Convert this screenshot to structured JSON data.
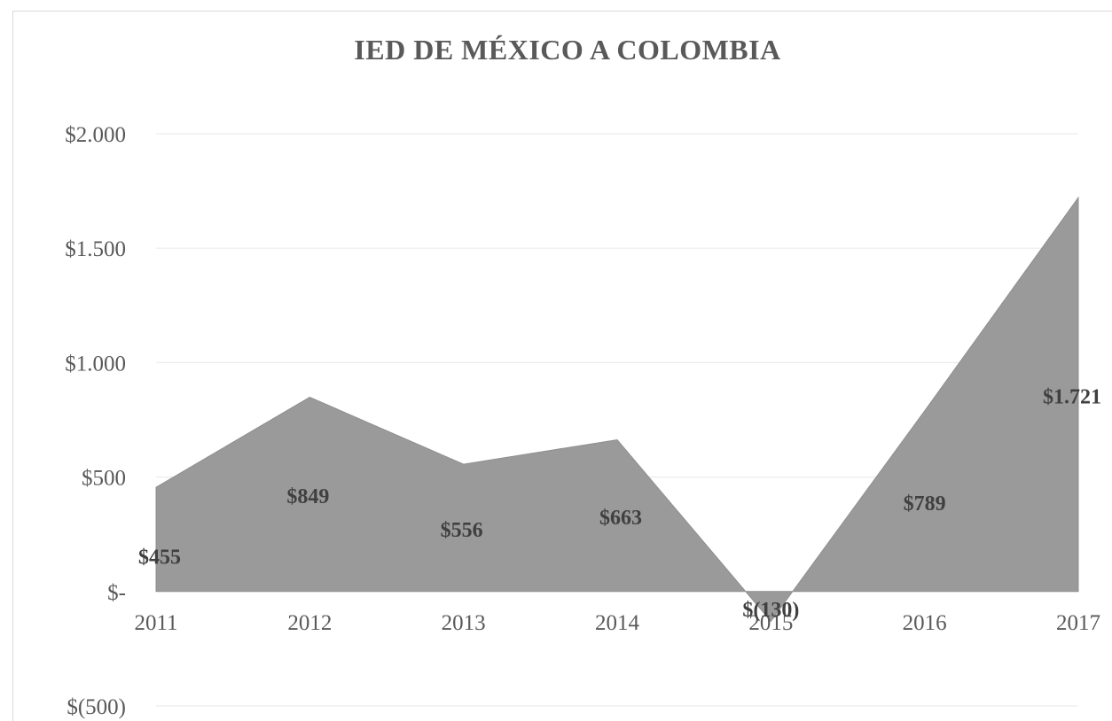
{
  "chart_data": {
    "type": "area",
    "title": "IED DE MÉXICO A COLOMBIA",
    "categories": [
      "2011",
      "2012",
      "2013",
      "2014",
      "2015",
      "2016",
      "2017"
    ],
    "series": [
      {
        "values": [
          455,
          849,
          556,
          663,
          -130,
          789,
          1721
        ],
        "color": "#9a9a9a"
      }
    ],
    "data_labels": [
      "$455",
      "$849",
      "$556",
      "$663",
      "$(130)",
      "$789",
      "$1.721"
    ],
    "y_ticks": [
      {
        "value": 2000,
        "label": "$2.000"
      },
      {
        "value": 1500,
        "label": "$1.500"
      },
      {
        "value": 1000,
        "label": "$1.000"
      },
      {
        "value": 500,
        "label": "$500"
      },
      {
        "value": 0,
        "label": "$-"
      },
      {
        "value": -500,
        "label": "$(500)"
      }
    ],
    "ylim": [
      -500,
      2000
    ],
    "xlabel": "",
    "ylabel": "",
    "grid": true,
    "legend": "none"
  }
}
